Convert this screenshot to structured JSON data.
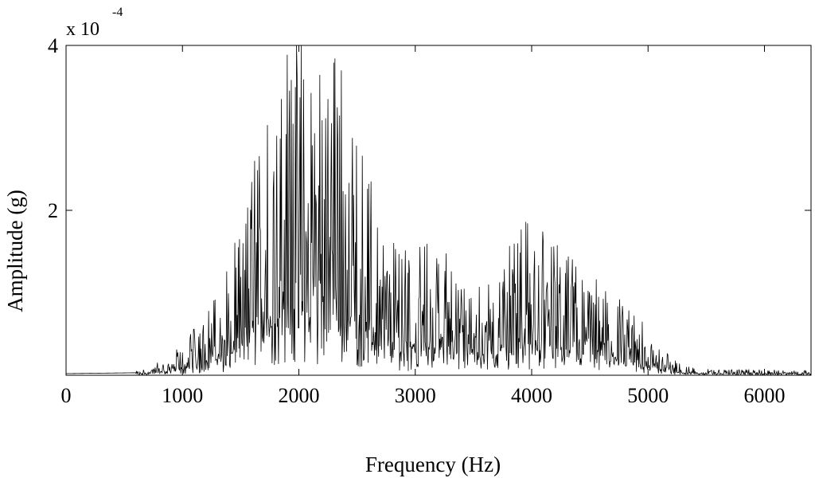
{
  "chart_data": {
    "type": "line",
    "title": "",
    "xlabel": "Frequency (Hz)",
    "ylabel": "Amplitude (g)",
    "y_multiplier": {
      "prefix": "x 10",
      "exponent": "-4"
    },
    "xlim": [
      0,
      6400
    ],
    "ylim": [
      0,
      4
    ],
    "x_ticks": [
      0,
      1000,
      2000,
      3000,
      4000,
      5000,
      6000
    ],
    "x_tick_labels": [
      "0",
      "1000",
      "2000",
      "3000",
      "4000",
      "5000",
      "6000"
    ],
    "y_ticks": [
      2,
      4
    ],
    "y_tick_labels": [
      "2",
      "4"
    ],
    "grid": false,
    "line_color": "#000000",
    "series": [
      {
        "envelope_x": [
          0,
          600,
          700,
          800,
          900,
          1000,
          1100,
          1200,
          1300,
          1400,
          1500,
          1600,
          1700,
          1800,
          1900,
          2000,
          2100,
          2200,
          2300,
          2400,
          2500,
          2600,
          2700,
          2800,
          2900,
          3000,
          3100,
          3200,
          3300,
          3400,
          3500,
          3600,
          3700,
          3800,
          3900,
          4000,
          4100,
          4200,
          4300,
          4400,
          4500,
          4600,
          4700,
          4800,
          4900,
          5000,
          5100,
          5200,
          5300,
          5400,
          5500,
          6000,
          6400
        ],
        "envelope_y": [
          0.02,
          0.03,
          0.06,
          0.1,
          0.16,
          0.25,
          0.35,
          0.5,
          0.65,
          0.85,
          1.1,
          1.6,
          2.0,
          2.35,
          2.5,
          2.6,
          2.7,
          2.65,
          2.5,
          2.25,
          1.95,
          1.55,
          1.2,
          1.05,
          1.05,
          1.0,
          1.0,
          1.05,
          1.0,
          0.95,
          0.85,
          0.75,
          0.9,
          1.1,
          1.2,
          1.2,
          1.15,
          1.05,
          0.95,
          0.85,
          0.8,
          0.7,
          0.65,
          0.55,
          0.45,
          0.35,
          0.22,
          0.14,
          0.09,
          0.06,
          0.05,
          0.04,
          0.04
        ],
        "peaks": [
          {
            "x": 1850,
            "y": 3.35
          },
          {
            "x": 2250,
            "y": 3.35
          },
          {
            "x": 1950,
            "y": 3.05
          },
          {
            "x": 2350,
            "y": 3.15
          },
          {
            "x": 1620,
            "y": 2.6
          },
          {
            "x": 2620,
            "y": 2.35
          },
          {
            "x": 1490,
            "y": 1.65
          },
          {
            "x": 3200,
            "y": 1.35
          },
          {
            "x": 3880,
            "y": 1.6
          },
          {
            "x": 4100,
            "y": 1.6
          },
          {
            "x": 4500,
            "y": 0.95
          },
          {
            "x": 4950,
            "y": 0.65
          }
        ]
      }
    ]
  }
}
